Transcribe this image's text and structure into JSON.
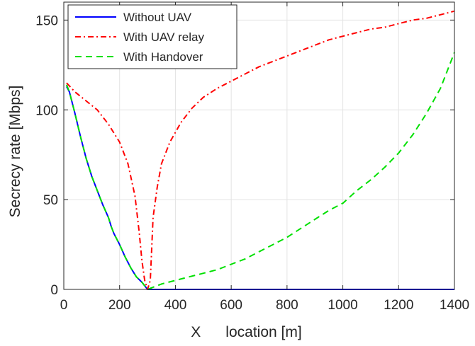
{
  "chart_data": {
    "type": "line",
    "title": "",
    "xlabel": "X      location [m]",
    "ylabel": "Secrecy rate [Mbps]",
    "xlim": [
      0,
      1400
    ],
    "ylim": [
      0,
      160
    ],
    "xticks": [
      0,
      200,
      400,
      600,
      800,
      1000,
      1200,
      1400
    ],
    "yticks": [
      0,
      50,
      100,
      150
    ],
    "grid": true,
    "legend_position": "top-left",
    "series": [
      {
        "name": "Without UAV",
        "color": "#0000ff",
        "style": "solid",
        "points": [
          [
            10,
            113
          ],
          [
            20,
            110
          ],
          [
            40,
            98
          ],
          [
            60,
            85
          ],
          [
            80,
            73
          ],
          [
            100,
            63
          ],
          [
            120,
            55
          ],
          [
            140,
            47
          ],
          [
            160,
            40
          ],
          [
            170,
            35
          ],
          [
            180,
            31
          ],
          [
            200,
            25
          ],
          [
            220,
            18
          ],
          [
            240,
            12
          ],
          [
            260,
            7
          ],
          [
            280,
            4
          ],
          [
            290,
            2
          ],
          [
            300,
            0
          ],
          [
            1400,
            0
          ]
        ]
      },
      {
        "name": "With UAV relay",
        "color": "#ff0000",
        "style": "dashdot",
        "points": [
          [
            10,
            115
          ],
          [
            40,
            110
          ],
          [
            80,
            105
          ],
          [
            120,
            100
          ],
          [
            160,
            92
          ],
          [
            200,
            82
          ],
          [
            230,
            70
          ],
          [
            255,
            52
          ],
          [
            270,
            32
          ],
          [
            280,
            16
          ],
          [
            290,
            5
          ],
          [
            300,
            0
          ],
          [
            310,
            5
          ],
          [
            320,
            40
          ],
          [
            335,
            57
          ],
          [
            350,
            70
          ],
          [
            380,
            82
          ],
          [
            420,
            93
          ],
          [
            460,
            101
          ],
          [
            500,
            107
          ],
          [
            550,
            112
          ],
          [
            600,
            116
          ],
          [
            650,
            120
          ],
          [
            700,
            124
          ],
          [
            750,
            127
          ],
          [
            800,
            130
          ],
          [
            850,
            133
          ],
          [
            900,
            136
          ],
          [
            950,
            139
          ],
          [
            1000,
            141
          ],
          [
            1050,
            143
          ],
          [
            1100,
            145
          ],
          [
            1150,
            146
          ],
          [
            1200,
            148
          ],
          [
            1250,
            150
          ],
          [
            1300,
            151
          ],
          [
            1350,
            153
          ],
          [
            1400,
            155
          ]
        ]
      },
      {
        "name": "With Handover",
        "color": "#00e000",
        "style": "dashed",
        "points": [
          [
            10,
            114
          ],
          [
            20,
            110
          ],
          [
            40,
            98
          ],
          [
            60,
            85
          ],
          [
            80,
            73
          ],
          [
            100,
            63
          ],
          [
            120,
            55
          ],
          [
            140,
            47
          ],
          [
            160,
            40
          ],
          [
            170,
            35
          ],
          [
            180,
            31
          ],
          [
            200,
            25
          ],
          [
            220,
            18
          ],
          [
            240,
            12
          ],
          [
            260,
            7
          ],
          [
            280,
            4
          ],
          [
            290,
            2
          ],
          [
            300,
            0
          ],
          [
            350,
            3
          ],
          [
            400,
            5
          ],
          [
            450,
            7
          ],
          [
            500,
            9
          ],
          [
            550,
            11
          ],
          [
            600,
            14
          ],
          [
            650,
            17
          ],
          [
            700,
            21
          ],
          [
            750,
            25
          ],
          [
            800,
            29
          ],
          [
            850,
            34
          ],
          [
            900,
            39
          ],
          [
            950,
            44
          ],
          [
            1000,
            48
          ],
          [
            1050,
            55
          ],
          [
            1100,
            61
          ],
          [
            1150,
            68
          ],
          [
            1200,
            76
          ],
          [
            1250,
            86
          ],
          [
            1300,
            98
          ],
          [
            1350,
            112
          ],
          [
            1400,
            132
          ]
        ]
      }
    ]
  }
}
